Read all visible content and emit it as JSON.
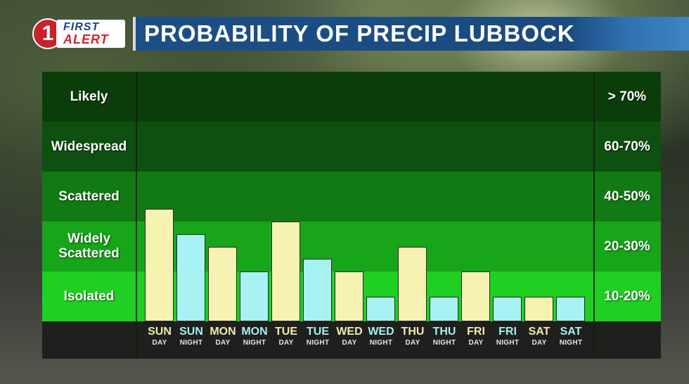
{
  "header": {
    "logo_number": "1",
    "logo_first": "FIRST",
    "logo_alert": "ALERT",
    "title": "PROBABILITY OF PRECIP LUBBOCK"
  },
  "colors": {
    "band_likely": "#0b3d0b",
    "band_widespread": "#0d5010",
    "band_scattered": "#127a14",
    "band_widely_scattered": "#17a51a",
    "band_isolated": "#1fcf22",
    "bar_day": "#f6f3b2",
    "bar_night": "#a8f2f4",
    "title_bar": "#1c4f86"
  },
  "chart_data": {
    "type": "bar",
    "title": "PROBABILITY OF PRECIP LUBBOCK",
    "ylim": [
      0,
      80
    ],
    "bands": [
      {
        "label": "Likely",
        "range": "> 70%",
        "low": 70,
        "high": 80
      },
      {
        "label": "Widespread",
        "range": "60-70%",
        "low": 60,
        "high": 70
      },
      {
        "label": "Scattered",
        "range": "40-50%",
        "low": 40,
        "high": 60
      },
      {
        "label": "Widely Scattered",
        "range": "20-30%",
        "low": 20,
        "high": 40
      },
      {
        "label": "Isolated",
        "range": "10-20%",
        "low": 0,
        "high": 20
      }
    ],
    "categories": [
      {
        "day": "SUN",
        "period": "DAY",
        "type": "day"
      },
      {
        "day": "SUN",
        "period": "NIGHT",
        "type": "night"
      },
      {
        "day": "MON",
        "period": "DAY",
        "type": "day"
      },
      {
        "day": "MON",
        "period": "NIGHT",
        "type": "night"
      },
      {
        "day": "TUE",
        "period": "DAY",
        "type": "day"
      },
      {
        "day": "TUE",
        "period": "NIGHT",
        "type": "night"
      },
      {
        "day": "WED",
        "period": "DAY",
        "type": "day"
      },
      {
        "day": "WED",
        "period": "NIGHT",
        "type": "night"
      },
      {
        "day": "THU",
        "period": "DAY",
        "type": "day"
      },
      {
        "day": "THU",
        "period": "NIGHT",
        "type": "night"
      },
      {
        "day": "FRI",
        "period": "DAY",
        "type": "day"
      },
      {
        "day": "FRI",
        "period": "NIGHT",
        "type": "night"
      },
      {
        "day": "SAT",
        "period": "DAY",
        "type": "day"
      },
      {
        "day": "SAT",
        "period": "NIGHT",
        "type": "night"
      }
    ],
    "values": [
      45,
      35,
      30,
      20,
      40,
      25,
      20,
      10,
      30,
      10,
      20,
      10,
      10,
      10
    ],
    "grid": false,
    "legend": "none"
  }
}
